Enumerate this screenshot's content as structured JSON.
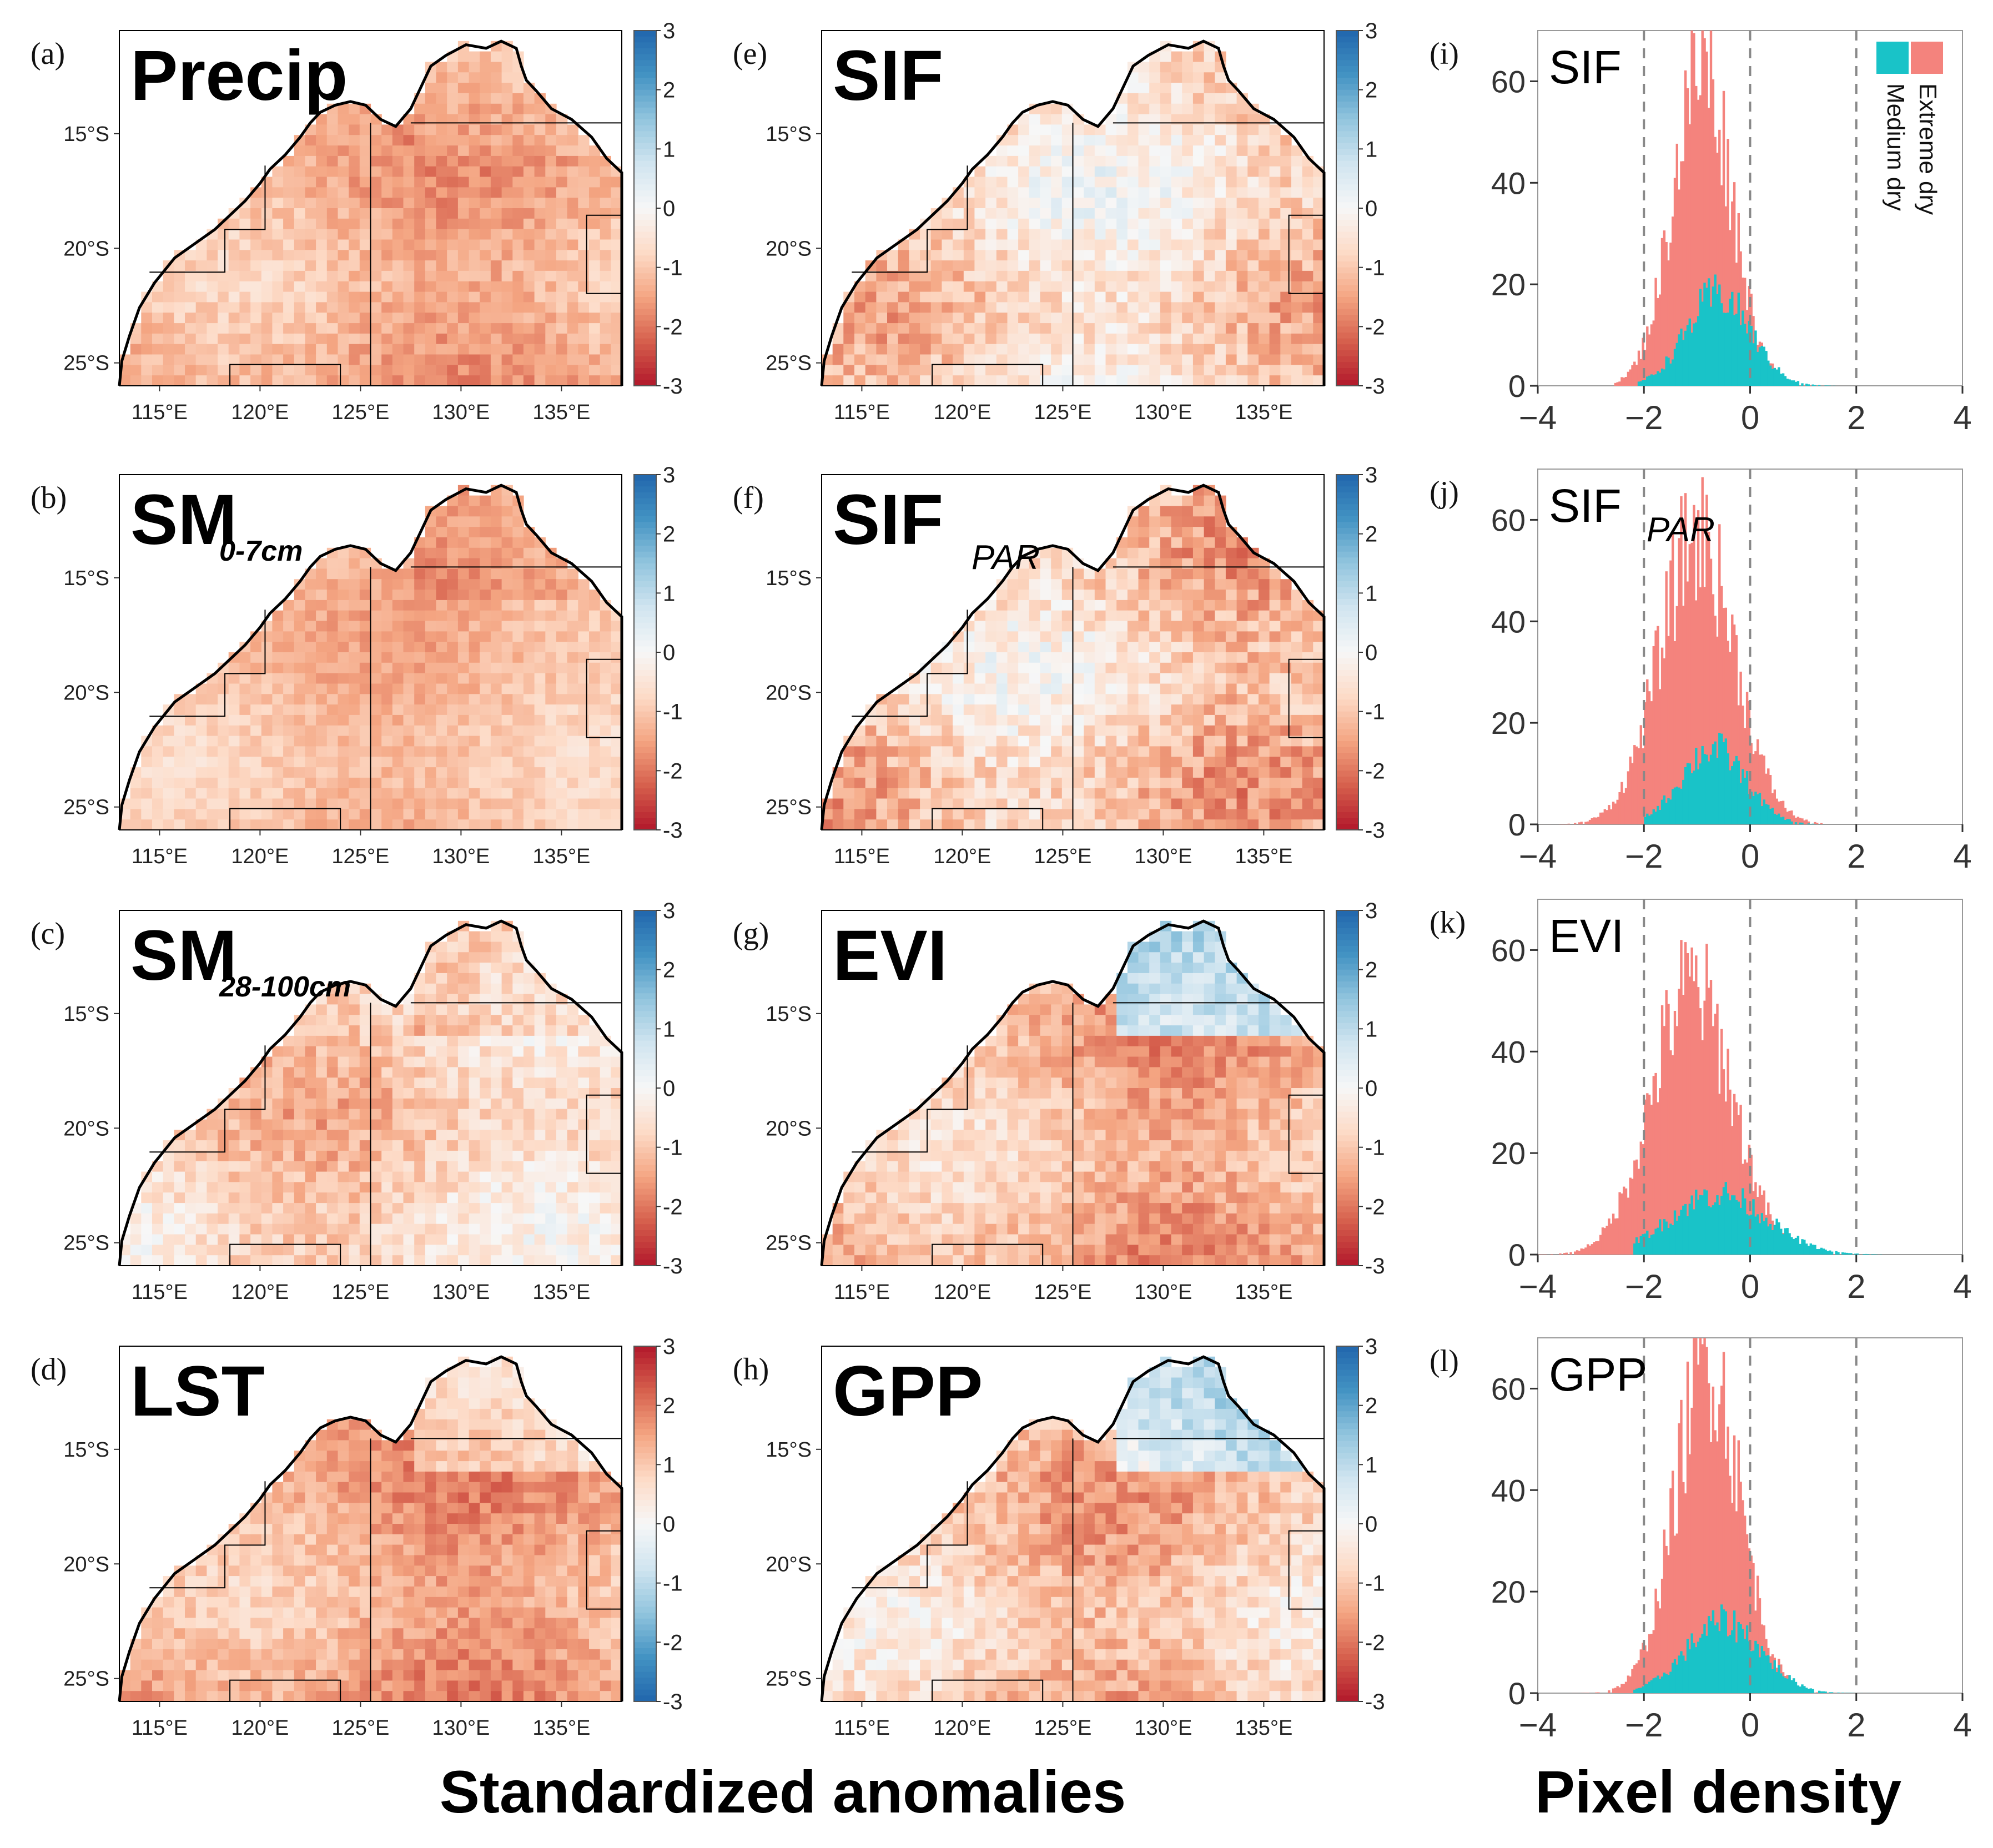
{
  "colors": {
    "cmap": [
      "#b2182b",
      "#d6604d",
      "#f4a582",
      "#fddbc7",
      "#f7f7f7",
      "#d1e5f0",
      "#92c5de",
      "#4393c3",
      "#2166ac"
    ],
    "extreme": "#f4837d",
    "medium": "#19c3c8",
    "land_line": "#000000"
  },
  "footer": {
    "left": "Standardized anomalies",
    "right": "Pixel density"
  },
  "map_axes": {
    "lat_labels": [
      "15°S",
      "20°S",
      "25°S"
    ],
    "lat_values": [
      -15,
      -20,
      -25
    ],
    "lon_labels": [
      "115°E",
      "120°E",
      "125°E",
      "130°E",
      "135°E"
    ],
    "lon_values": [
      115,
      120,
      125,
      130,
      135
    ],
    "lon_range": [
      113,
      138
    ],
    "lat_range": [
      -10.5,
      -26
    ]
  },
  "maps": [
    {
      "label": "(a)",
      "title": "Precip",
      "sub": "",
      "cbar": [
        "3",
        "2",
        "1",
        "0",
        "-1",
        "-2",
        "-3"
      ],
      "reverse": false,
      "mean": -1.3,
      "spread": 0.55,
      "north": -1.0
    },
    {
      "label": "(b)",
      "title": "SM",
      "sub": "0-7cm",
      "cbar": [
        "3",
        "2",
        "1",
        "0",
        "-1",
        "-2",
        "-3"
      ],
      "reverse": false,
      "mean": -1.1,
      "spread": 0.45,
      "north": -1.6
    },
    {
      "label": "(c)",
      "title": "SM",
      "sub": "28-100cm",
      "cbar": [
        "3",
        "2",
        "1",
        "0",
        "-1",
        "-2",
        "-3"
      ],
      "reverse": false,
      "mean": -0.8,
      "spread": 0.7,
      "north": -1.3
    },
    {
      "label": "(d)",
      "title": "LST",
      "sub": "",
      "cbar": [
        "3",
        "2",
        "1",
        "0",
        "-1",
        "-2",
        "-3"
      ],
      "reverse": true,
      "mean": 1.4,
      "spread": 0.6,
      "north": 0.4
    },
    {
      "label": "(e)",
      "title": "SIF",
      "sub": "",
      "cbar": [
        "3",
        "2",
        "1",
        "0",
        "-1",
        "-2",
        "-3"
      ],
      "reverse": false,
      "mean": -0.7,
      "spread": 0.8,
      "north": -0.6
    },
    {
      "label": "(f)",
      "title": "SIF",
      "sub": "PAR",
      "cbar": [
        "3",
        "2",
        "1",
        "0",
        "-1",
        "-2",
        "-3"
      ],
      "reverse": false,
      "mean": -0.9,
      "spread": 0.85,
      "north": -0.9
    },
    {
      "label": "(g)",
      "title": "EVI",
      "sub": "",
      "cbar": [
        "3",
        "2",
        "1",
        "0",
        "-1",
        "-2",
        "-3"
      ],
      "reverse": false,
      "mean": -1.2,
      "spread": 0.7,
      "north": 1.4
    },
    {
      "label": "(h)",
      "title": "GPP",
      "sub": "",
      "cbar": [
        "3",
        "2",
        "1",
        "0",
        "-1",
        "-2",
        "-3"
      ],
      "reverse": false,
      "mean": -1.0,
      "spread": 0.75,
      "north": 0.9
    }
  ],
  "legend": {
    "extreme": "Extreme dry",
    "medium": "Medium dry"
  },
  "chart_data": [
    {
      "type": "bar",
      "label": "(i)",
      "title": "SIF",
      "sub": "",
      "xlim": [
        -4,
        4
      ],
      "ylim": [
        0,
        70
      ],
      "xticks": [
        "-4",
        "-2",
        "0",
        "2",
        "4"
      ],
      "yticks": [
        "0",
        "20",
        "40",
        "60"
      ],
      "vlines": [
        -2,
        0,
        2
      ],
      "series": [
        {
          "name": "Extreme dry",
          "center": -0.9,
          "sd": 0.55,
          "peak": 63,
          "xmin": -2.6,
          "xmax": 1.6
        },
        {
          "name": "Medium dry",
          "center": -0.6,
          "sd": 0.6,
          "peak": 18,
          "xmin": -2.2,
          "xmax": 1.6
        }
      ]
    },
    {
      "type": "bar",
      "label": "(j)",
      "title": "SIF",
      "sub": "PAR",
      "xlim": [
        -4,
        4
      ],
      "ylim": [
        0,
        70
      ],
      "xticks": [
        "-4",
        "-2",
        "0",
        "2",
        "4"
      ],
      "yticks": [
        "0",
        "20",
        "40",
        "60"
      ],
      "vlines": [
        -2,
        0,
        2
      ],
      "series": [
        {
          "name": "Extreme dry",
          "center": -1.0,
          "sd": 0.7,
          "peak": 57,
          "xmin": -4.0,
          "xmax": 1.4
        },
        {
          "name": "Medium dry",
          "center": -0.7,
          "sd": 0.6,
          "peak": 15,
          "xmin": -2.0,
          "xmax": 1.4
        }
      ]
    },
    {
      "type": "bar",
      "label": "(k)",
      "title": "EVI",
      "sub": "",
      "xlim": [
        -4,
        4
      ],
      "ylim": [
        0,
        70
      ],
      "xticks": [
        "-4",
        "-2",
        "0",
        "2",
        "4"
      ],
      "yticks": [
        "0",
        "20",
        "40",
        "60"
      ],
      "vlines": [
        -2,
        0,
        2
      ],
      "series": [
        {
          "name": "Extreme dry",
          "center": -1.1,
          "sd": 0.75,
          "peak": 53,
          "xmin": -4.0,
          "xmax": 2.2
        },
        {
          "name": "Medium dry",
          "center": -0.6,
          "sd": 0.9,
          "peak": 12,
          "xmin": -2.2,
          "xmax": 2.6
        }
      ]
    },
    {
      "type": "bar",
      "label": "(l)",
      "title": "GPP",
      "sub": "",
      "xlim": [
        -4,
        4
      ],
      "ylim": [
        0,
        70
      ],
      "xticks": [
        "-4",
        "-2",
        "0",
        "2",
        "4"
      ],
      "yticks": [
        "0",
        "20",
        "40",
        "60"
      ],
      "vlines": [
        -2,
        0,
        2
      ],
      "series": [
        {
          "name": "Extreme dry",
          "center": -0.8,
          "sd": 0.6,
          "peak": 66,
          "xmin": -4.0,
          "xmax": 1.8
        },
        {
          "name": "Medium dry",
          "center": -0.5,
          "sd": 0.7,
          "peak": 14,
          "xmin": -2.2,
          "xmax": 2.6
        }
      ]
    }
  ]
}
